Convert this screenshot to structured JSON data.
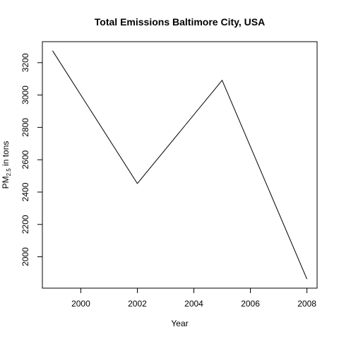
{
  "chart_data": {
    "type": "line",
    "title": "Total Emissions Baltimore City, USA",
    "xlabel": "Year",
    "ylabel": {
      "main": "PM",
      "subscript": "2.5",
      "suffix": " in tons"
    },
    "x": [
      1999,
      2002,
      2005,
      2008
    ],
    "series": [
      {
        "values": [
          3274,
          2453,
          3091,
          1862
        ]
      }
    ],
    "xlim": [
      1998.64,
      2008.36
    ],
    "ylim": [
      1806,
      3330
    ],
    "xticks": [
      2000,
      2002,
      2004,
      2006,
      2008
    ],
    "yticks": [
      2000,
      2200,
      2400,
      2600,
      2800,
      3000,
      3200
    ],
    "grid": false,
    "legend": "none",
    "line_color": "#000000"
  }
}
